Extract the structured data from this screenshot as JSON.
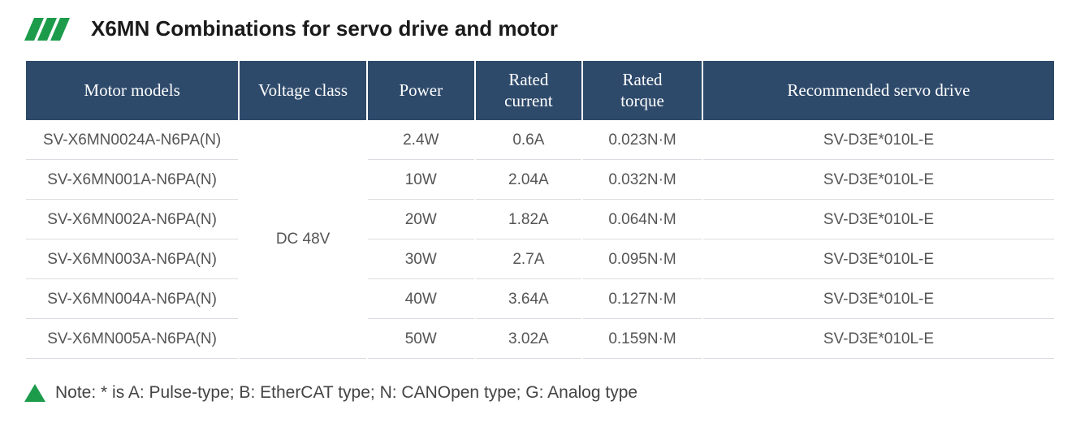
{
  "title": "X6MN Combinations for servo drive and motor",
  "brand_color": "#1c9c4b",
  "table": {
    "header_bg": "#2e4a6b",
    "header_fg": "#ffffff",
    "row_border": "#d9dde1",
    "columns": [
      {
        "key": "model",
        "label": "Motor models"
      },
      {
        "key": "voltage",
        "label": "Voltage class"
      },
      {
        "key": "power",
        "label": "Power"
      },
      {
        "key": "current",
        "label": "Rated current"
      },
      {
        "key": "torque",
        "label": "Rated torque"
      },
      {
        "key": "drive",
        "label": "Recommended servo drive"
      }
    ],
    "voltage_span_label": "DC 48V",
    "rows": [
      {
        "model": "SV-X6MN0024A-N6PA(N)",
        "power": "2.4W",
        "current": "0.6A",
        "torque": "0.023N·M",
        "drive": "SV-D3E*010L-E"
      },
      {
        "model": "SV-X6MN001A-N6PA(N)",
        "power": "10W",
        "current": "2.04A",
        "torque": "0.032N·M",
        "drive": "SV-D3E*010L-E"
      },
      {
        "model": "SV-X6MN002A-N6PA(N)",
        "power": "20W",
        "current": "1.82A",
        "torque": "0.064N·M",
        "drive": "SV-D3E*010L-E"
      },
      {
        "model": "SV-X6MN003A-N6PA(N)",
        "power": "30W",
        "current": "2.7A",
        "torque": "0.095N·M",
        "drive": "SV-D3E*010L-E"
      },
      {
        "model": "SV-X6MN004A-N6PA(N)",
        "power": "40W",
        "current": "3.64A",
        "torque": "0.127N·M",
        "drive": "SV-D3E*010L-E"
      },
      {
        "model": "SV-X6MN005A-N6PA(N)",
        "power": "50W",
        "current": "3.02A",
        "torque": "0.159N·M",
        "drive": "SV-D3E*010L-E"
      }
    ]
  },
  "note": "Note: * is A: Pulse-type; B: EtherCAT type; N: CANOpen type;   G:   Analog type"
}
